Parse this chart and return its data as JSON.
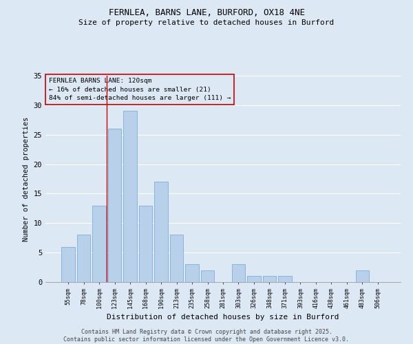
{
  "title_line1": "FERNLEA, BARNS LANE, BURFORD, OX18 4NE",
  "title_line2": "Size of property relative to detached houses in Burford",
  "xlabel": "Distribution of detached houses by size in Burford",
  "ylabel": "Number of detached properties",
  "categories": [
    "55sqm",
    "78sqm",
    "100sqm",
    "123sqm",
    "145sqm",
    "168sqm",
    "190sqm",
    "213sqm",
    "235sqm",
    "258sqm",
    "281sqm",
    "303sqm",
    "326sqm",
    "348sqm",
    "371sqm",
    "393sqm",
    "416sqm",
    "438sqm",
    "461sqm",
    "483sqm",
    "506sqm"
  ],
  "values": [
    6,
    8,
    13,
    26,
    29,
    13,
    17,
    8,
    3,
    2,
    0,
    3,
    1,
    1,
    1,
    0,
    0,
    0,
    0,
    2,
    0
  ],
  "bar_color": "#b8d0ea",
  "bar_edge_color": "#7aafd4",
  "background_color": "#dde8f5",
  "grid_color": "#ffffff",
  "vline_x_index": 2.5,
  "vline_color": "#cc0000",
  "annotation_text": "FERNLEA BARNS LANE: 120sqm\n← 16% of detached houses are smaller (21)\n84% of semi-detached houses are larger (111) →",
  "annotation_box_color": "#cc0000",
  "ylim": [
    0,
    35
  ],
  "yticks": [
    0,
    5,
    10,
    15,
    20,
    25,
    30,
    35
  ],
  "footer_line1": "Contains HM Land Registry data © Crown copyright and database right 2025.",
  "footer_line2": "Contains public sector information licensed under the Open Government Licence v3.0."
}
